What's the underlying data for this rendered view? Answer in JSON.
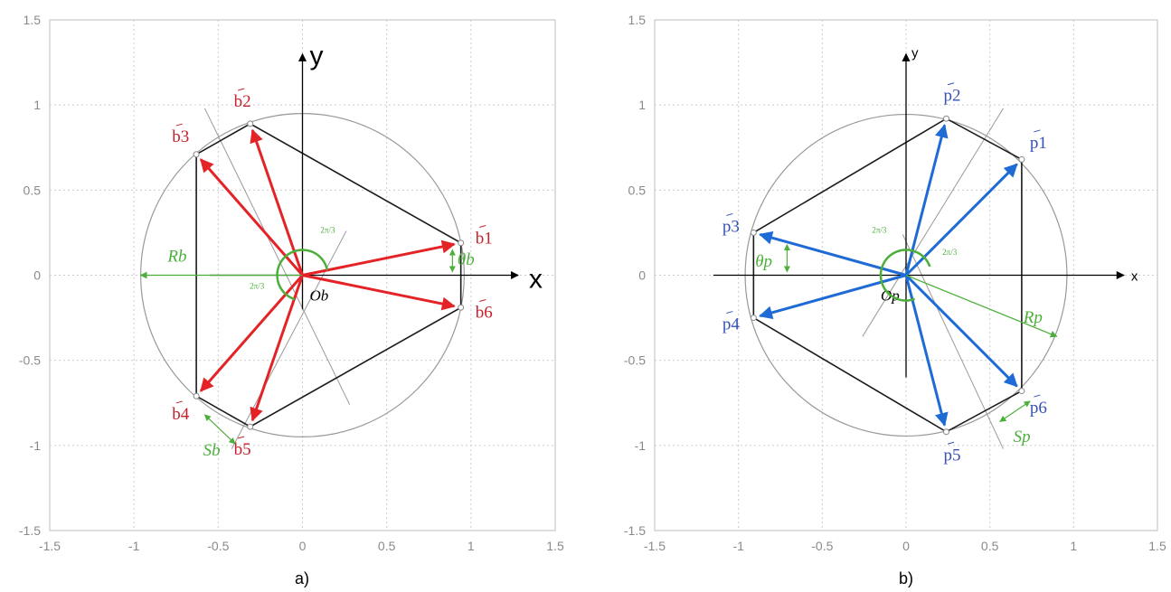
{
  "colors": {
    "base_arrow": "#e42326",
    "platform_arrow": "#1e6bd6",
    "annotation_green": "#4caf3a",
    "polygon": "#1a1a1a",
    "circle": "#999999",
    "grid": "#cccccc",
    "base_label": "#c8202a",
    "platform_label": "#3550b5"
  },
  "panels": [
    {
      "id": "a",
      "caption": "a)",
      "xlim": [
        -1.5,
        1.5
      ],
      "ylim": [
        -1.5,
        1.5
      ],
      "xticks": [
        "-1.5",
        "-1",
        "-0.5",
        "0",
        "0.5",
        "1",
        "1.5"
      ],
      "yticks": [
        "1.5",
        "1",
        "0.5",
        "0",
        "-0.5",
        "-1",
        "-1.5"
      ],
      "x_axis_label": "x",
      "y_axis_label": "y",
      "origin_label": "Ob",
      "radius_label": "Rb",
      "spacing_label": "Sb",
      "angle_label": "θb",
      "sector_label": "2π/3",
      "vector_letter": "b",
      "circle_radius": 0.96,
      "vectors": [
        {
          "label": "b1",
          "x": 0.94,
          "y": 0.19
        },
        {
          "label": "b2",
          "x": -0.31,
          "y": 0.89
        },
        {
          "label": "b3",
          "x": -0.63,
          "y": 0.71
        },
        {
          "label": "b4",
          "x": -0.63,
          "y": -0.71
        },
        {
          "label": "b5",
          "x": -0.31,
          "y": -0.89
        },
        {
          "label": "b6",
          "x": 0.94,
          "y": -0.19
        }
      ]
    },
    {
      "id": "b",
      "caption": "b)",
      "xlim": [
        -1.5,
        1.5
      ],
      "ylim": [
        -1.5,
        1.5
      ],
      "xticks": [
        "-1.5",
        "-1",
        "-0.5",
        "0",
        "0.5",
        "1",
        "1.5"
      ],
      "yticks": [
        "1.5",
        "1",
        "0.5",
        "0",
        "-0.5",
        "-1",
        "-1.5"
      ],
      "x_axis_label": "x",
      "y_axis_label": "y",
      "origin_label": "Op",
      "radius_label": "Rp",
      "spacing_label": "Sp",
      "angle_label": "θp",
      "sector_label": "2π/3",
      "vector_letter": "p",
      "circle_radius": 0.96,
      "vectors": [
        {
          "label": "p1",
          "x": 0.69,
          "y": 0.68
        },
        {
          "label": "p2",
          "x": 0.24,
          "y": 0.92
        },
        {
          "label": "p3",
          "x": -0.91,
          "y": 0.25
        },
        {
          "label": "p4",
          "x": -0.91,
          "y": -0.25
        },
        {
          "label": "p5",
          "x": 0.24,
          "y": -0.92
        },
        {
          "label": "p6",
          "x": 0.69,
          "y": -0.68
        }
      ]
    }
  ]
}
